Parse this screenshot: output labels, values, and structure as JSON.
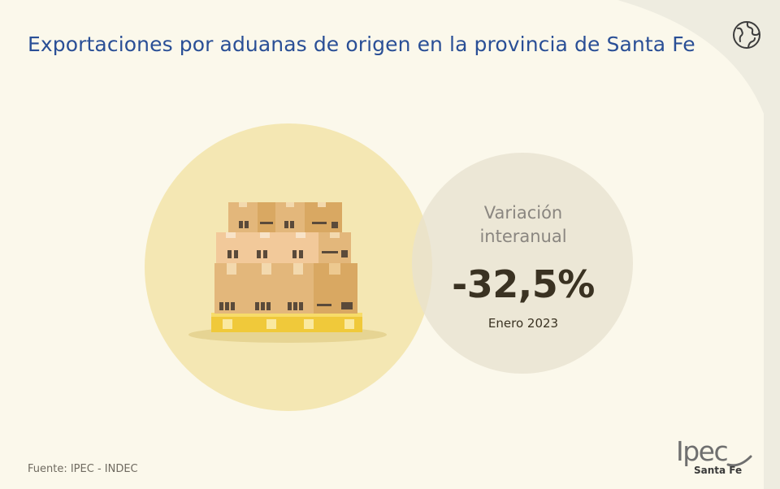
{
  "header": {
    "title": "Exportaciones por aduanas de origen en la provincia de Santa Fe"
  },
  "indicator": {
    "label_line1": "Variación",
    "label_line2": "interanual",
    "value": "-32,5%",
    "period": "Enero 2023"
  },
  "footer": {
    "source": "Fuente: IPEC - INDEC"
  },
  "logo": {
    "word": "Ipec",
    "subtitle": "Santa Fe"
  },
  "icons": {
    "globe": "globe-icon",
    "illustration": "boxes-on-pallet-illustration"
  },
  "colors": {
    "background": "#fbf8eb",
    "title": "#2a4f96",
    "big_circle": "#f4e7b3",
    "small_circle": "#e8e2d0",
    "value_text": "#3a3222"
  }
}
